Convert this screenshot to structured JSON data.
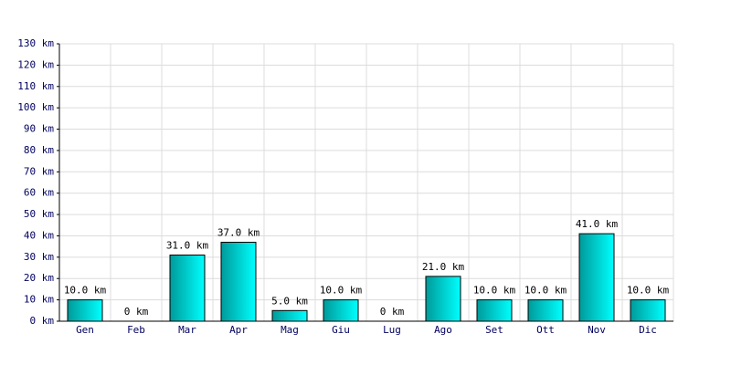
{
  "chart_data": {
    "type": "bar",
    "categories": [
      "Gen",
      "Feb",
      "Mar",
      "Apr",
      "Mag",
      "Giu",
      "Lug",
      "Ago",
      "Set",
      "Ott",
      "Nov",
      "Dic"
    ],
    "values": [
      10,
      0,
      31,
      37,
      5,
      10,
      0,
      21,
      10,
      10,
      41,
      10
    ],
    "value_labels": [
      "10.0 km",
      "0 km",
      "31.0 km",
      "37.0 km",
      "5.0 km",
      "10.0 km",
      "0 km",
      "21.0 km",
      "10.0 km",
      "10.0 km",
      "41.0 km",
      "10.0 km"
    ],
    "color": "#00ffff",
    "ylim": [
      0,
      130
    ],
    "yticks": [
      {
        "value": 0,
        "label": "0 km"
      },
      {
        "value": 10,
        "label": "10 km"
      },
      {
        "value": 20,
        "label": "20 km"
      },
      {
        "value": 30,
        "label": "30 km"
      },
      {
        "value": 40,
        "label": "40 km"
      },
      {
        "value": 50,
        "label": "50 km"
      },
      {
        "value": 60,
        "label": "60 km"
      },
      {
        "value": 70,
        "label": "70 km"
      },
      {
        "value": 80,
        "label": "80 km"
      },
      {
        "value": 90,
        "label": "90 km"
      },
      {
        "value": 100,
        "label": "100 km"
      },
      {
        "value": 110,
        "label": "110 km"
      },
      {
        "value": 120,
        "label": "120 km"
      },
      {
        "value": 130,
        "label": "130 km"
      }
    ],
    "grid": true
  }
}
